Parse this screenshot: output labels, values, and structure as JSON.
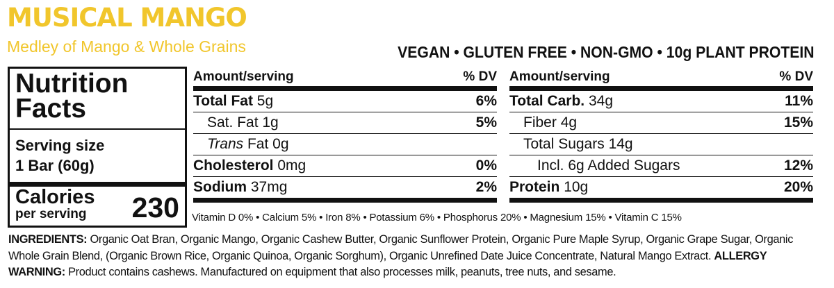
{
  "header": {
    "title": "MUSICAL MANGO",
    "subtitle": "Medley of Mango & Whole Grains",
    "claims": "VEGAN • GLUTEN FREE • NON-GMO • 10g PLANT PROTEIN"
  },
  "facts": {
    "title_line1": "Nutrition",
    "title_line2": "Facts",
    "serving_label": "Serving size",
    "serving_size": "1 Bar (60g)",
    "calories_label": "Calories",
    "calories_sub": "per serving",
    "calories": 230
  },
  "left_table": {
    "amount_header": "Amount/serving",
    "dv_header": "% DV",
    "rows": [
      {
        "name": "Total Fat",
        "amount": "5g",
        "dv": "6%",
        "sub_rows": [
          {
            "name": "Sat. Fat",
            "amount": "1g",
            "dv": "5%"
          },
          {
            "name_italic": "Trans",
            "name": "Fat",
            "amount": "0g"
          }
        ]
      },
      {
        "name": "Cholesterol",
        "amount": "0mg",
        "dv": "0%"
      },
      {
        "name": "Sodium",
        "amount": "37mg",
        "dv": "2%"
      }
    ]
  },
  "right_table": {
    "amount_header": "Amount/serving",
    "dv_header": "% DV",
    "rows": [
      {
        "name": "Total Carb.",
        "amount": "34g",
        "dv": "11%",
        "sub_rows": [
          {
            "name": "Fiber",
            "amount": "4g",
            "dv": "15%"
          },
          {
            "name": "Total Sugars",
            "amount": "14g",
            "sub_rows": [
              {
                "name": "Incl. 6g Added Sugars",
                "dv": "12%"
              }
            ]
          }
        ]
      },
      {
        "name": "Protein",
        "amount": "10g",
        "dv": "20%"
      }
    ]
  },
  "vitamins": "Vitamin D 0% • Calcium 5% • Iron 8% • Potassium 6% • Phosphorus 20% • Magnesium 15% • Vitamin C 15%",
  "ingredients": {
    "label": "INGREDIENTS:",
    "text": "Organic Oat Bran, Organic Mango, Organic Cashew Butter, Organic Sunflower Protein, Organic Pure Maple Syrup, Organic Grape Sugar, Organic Whole Grain Blend, (Organic Brown Rice, Organic Quinoa, Organic Sorghum), Organic Unrefined Date Juice Concentrate, Natural Mango Extract.",
    "allergy_label": "ALLERGY WARNING:",
    "allergy_text": "Product contains cashews. Manufactured on equipment that also processes milk, peanuts, tree nuts, and sesame."
  }
}
